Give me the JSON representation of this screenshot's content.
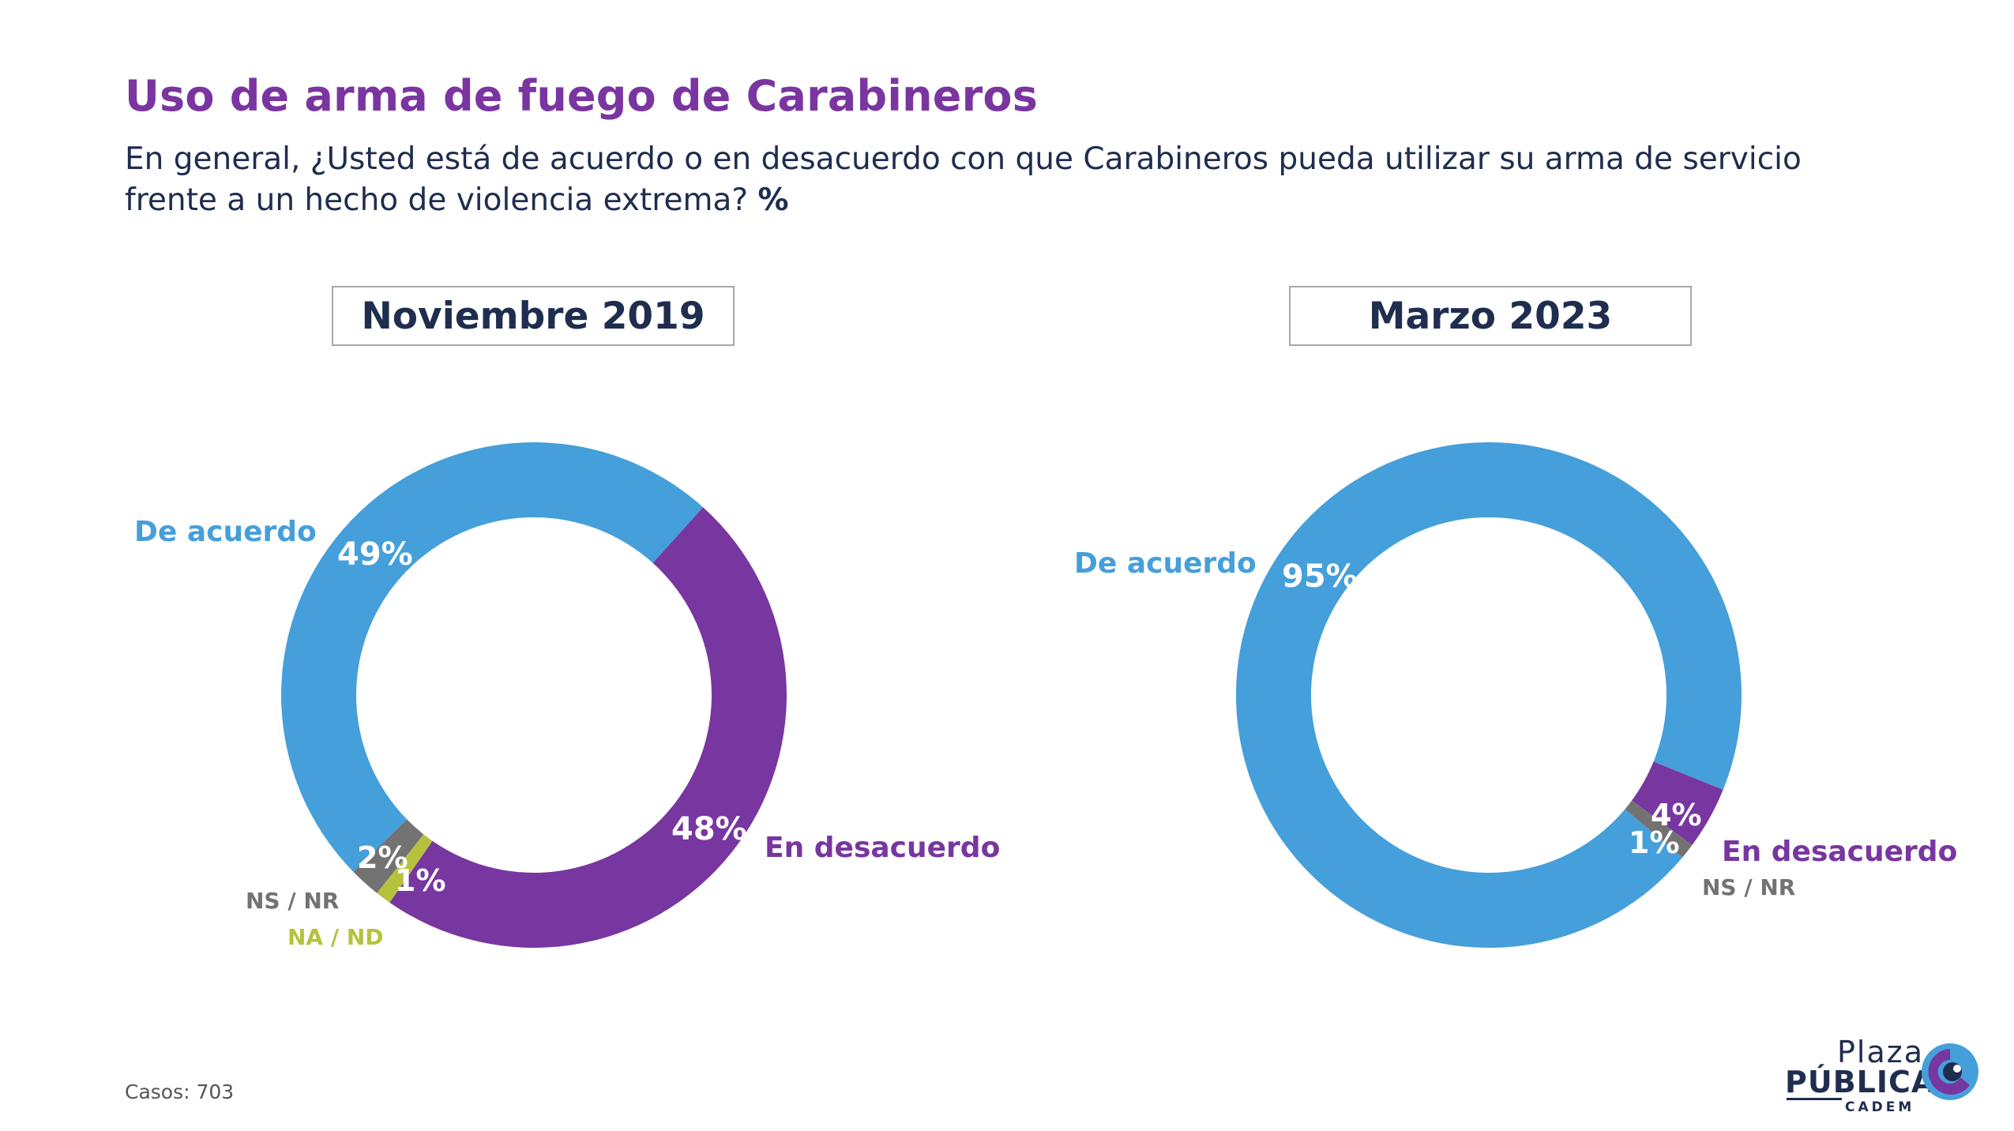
{
  "header": {
    "title": "Uso de arma de fuego de Carabineros",
    "subtitle": "En general, ¿Usted está de acuerdo o en desacuerdo con que Carabineros pueda utilizar su arma de servicio frente a un hecho de violencia extrema?",
    "subtitle_suffix": "%"
  },
  "colors": {
    "de_acuerdo": "#459fda",
    "en_desacuerdo": "#7836a0",
    "ns_nr": "#727272",
    "na_nd": "#b5c23d",
    "title": "#7a35a1",
    "text": "#1f2d4e"
  },
  "chart_data": [
    {
      "type": "pie",
      "title": "Noviembre 2019",
      "categories": [
        "De acuerdo",
        "En desacuerdo",
        "NA / ND",
        "NS / NR"
      ],
      "values": [
        49,
        48,
        1,
        2
      ],
      "value_labels": [
        "49%",
        "48%",
        "1%",
        "2%"
      ],
      "colors": [
        "#459fda",
        "#7836a0",
        "#b5c23d",
        "#727272"
      ]
    },
    {
      "type": "pie",
      "title": "Marzo 2023",
      "categories": [
        "De acuerdo",
        "En desacuerdo",
        "NS / NR"
      ],
      "values": [
        95,
        4,
        1
      ],
      "value_labels": [
        "95%",
        "4%",
        "1%"
      ],
      "colors": [
        "#459fda",
        "#7836a0",
        "#727272"
      ]
    }
  ],
  "footnote": "Casos: 703",
  "logo": {
    "line1": "Plaza",
    "line2": "PÚBLICA",
    "line3": "CADEM"
  }
}
